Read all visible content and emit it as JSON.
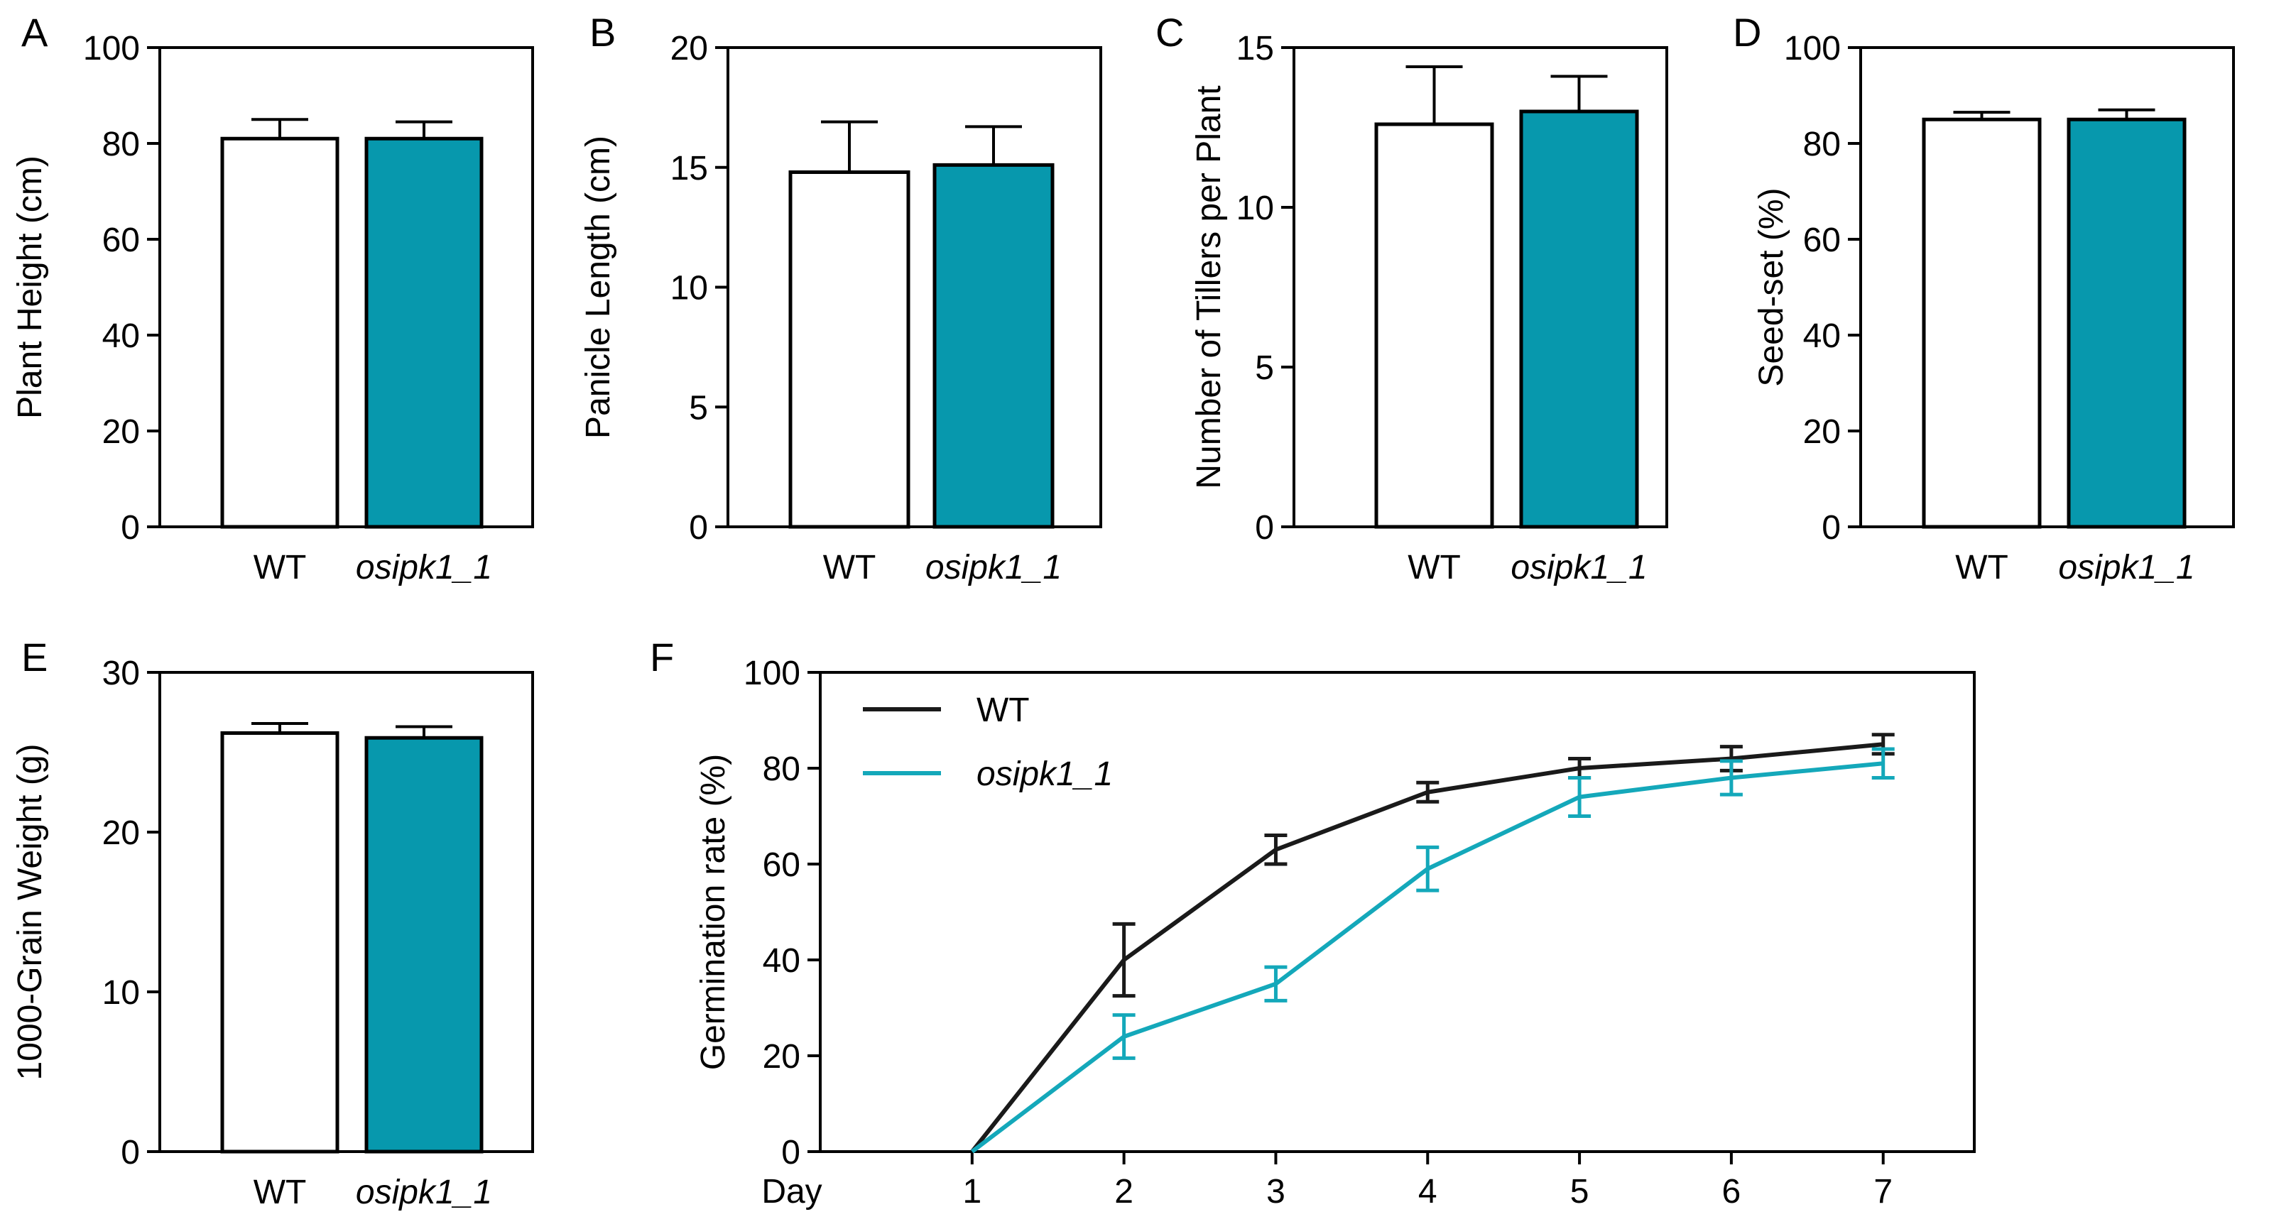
{
  "colors": {
    "wt_fill": "#ffffff",
    "mutant_fill": "#0798ad",
    "wt_line": "#1a1a1a",
    "mutant_line": "#14a8ba",
    "axis": "#000000"
  },
  "chart_data": [
    {
      "id": "A",
      "type": "bar",
      "letter": "A",
      "ylabel": "Plant Height (cm)",
      "ylim": [
        0,
        100
      ],
      "yticks": [
        0,
        20,
        40,
        60,
        80,
        100
      ],
      "categories": [
        "WT",
        "osipk1_1"
      ],
      "values": [
        81,
        81
      ],
      "errors": [
        4,
        3.5
      ]
    },
    {
      "id": "B",
      "type": "bar",
      "letter": "B",
      "ylabel": "Panicle Length  (cm)",
      "ylim": [
        0,
        20
      ],
      "yticks": [
        0,
        5,
        10,
        15,
        20
      ],
      "categories": [
        "WT",
        "osipk1_1"
      ],
      "values": [
        14.8,
        15.1
      ],
      "errors": [
        2.1,
        1.6
      ]
    },
    {
      "id": "C",
      "type": "bar",
      "letter": "C",
      "ylabel": "Number of Tillers per Plant",
      "ylim": [
        0,
        15
      ],
      "yticks": [
        0,
        5,
        10,
        15
      ],
      "categories": [
        "WT",
        "osipk1_1"
      ],
      "values": [
        12.6,
        13.0
      ],
      "errors": [
        1.8,
        1.1
      ]
    },
    {
      "id": "D",
      "type": "bar",
      "letter": "D",
      "ylabel": "Seed-set (%)",
      "ylim": [
        0,
        100
      ],
      "yticks": [
        0,
        20,
        40,
        60,
        80,
        100
      ],
      "categories": [
        "WT",
        "osipk1_1"
      ],
      "values": [
        85,
        85
      ],
      "errors": [
        1.5,
        2
      ]
    },
    {
      "id": "E",
      "type": "bar",
      "letter": "E",
      "ylabel": "1000-Grain Weight (g)",
      "ylim": [
        0,
        30
      ],
      "yticks": [
        0,
        10,
        20,
        30
      ],
      "categories": [
        "WT",
        "osipk1_1"
      ],
      "values": [
        26.2,
        25.9
      ],
      "errors": [
        0.6,
        0.7
      ]
    },
    {
      "id": "F",
      "type": "line",
      "letter": "F",
      "ylabel": "Germination rate (%)",
      "ylim": [
        0,
        100
      ],
      "yticks": [
        0,
        20,
        40,
        60,
        80,
        100
      ],
      "xlabel": "Day",
      "x": [
        1,
        2,
        3,
        4,
        5,
        6,
        7
      ],
      "xlim": [
        0,
        7.6
      ],
      "series": [
        {
          "name": "WT",
          "values": [
            0,
            40,
            63,
            75,
            80,
            82,
            85
          ],
          "errors": [
            0,
            7.5,
            3,
            2,
            2,
            2.5,
            2
          ]
        },
        {
          "name": "osipk1_1",
          "values": [
            0,
            24,
            35,
            59,
            74,
            78,
            81
          ],
          "errors": [
            0,
            4.5,
            3.5,
            4.5,
            4,
            3.5,
            3
          ]
        }
      ],
      "legend": "top-left"
    }
  ]
}
